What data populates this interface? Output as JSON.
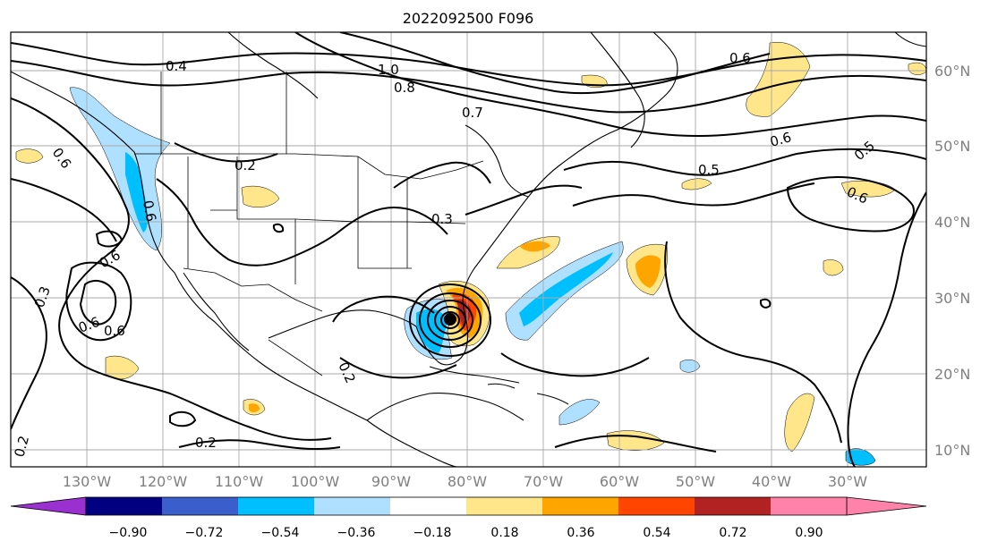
{
  "title": "2022092500 F096",
  "lon_labels": [
    "130°W",
    "120°W",
    "110°W",
    "100°W",
    "90°W",
    "80°W",
    "70°W",
    "60°W",
    "50°W",
    "40°W",
    "30°W"
  ],
  "lat_labels": [
    "60°N",
    "50°N",
    "40°N",
    "30°N",
    "20°N",
    "10°N"
  ],
  "colorbar": {
    "ticks": [
      "−0.90",
      "−0.72",
      "−0.54",
      "−0.36",
      "−0.18",
      "0.18",
      "0.36",
      "0.54",
      "0.72",
      "0.90"
    ],
    "colors": [
      "#9b30d0",
      "#000080",
      "#3a5fcd",
      "#00bfff",
      "#b0e0ff",
      "#ffffff",
      "#ffe68a",
      "#ffa500",
      "#ff4500",
      "#b22222",
      "#ff82ab"
    ]
  },
  "contour_labels": [
    {
      "text": "0.4"
    },
    {
      "text": "1.0"
    },
    {
      "text": "0.8"
    },
    {
      "text": "0.7"
    },
    {
      "text": "0.6"
    },
    {
      "text": "0.2"
    },
    {
      "text": "0.6"
    },
    {
      "text": "0.3"
    },
    {
      "text": "0.6"
    },
    {
      "text": "0.3"
    },
    {
      "text": "0.6"
    },
    {
      "text": "0.6"
    },
    {
      "text": "0.2"
    },
    {
      "text": "0.2"
    },
    {
      "text": "0.2"
    },
    {
      "text": "0.5"
    },
    {
      "text": "0.6"
    },
    {
      "text": "0.5"
    },
    {
      "text": "0.6"
    },
    {
      "text": "0.6"
    }
  ]
}
